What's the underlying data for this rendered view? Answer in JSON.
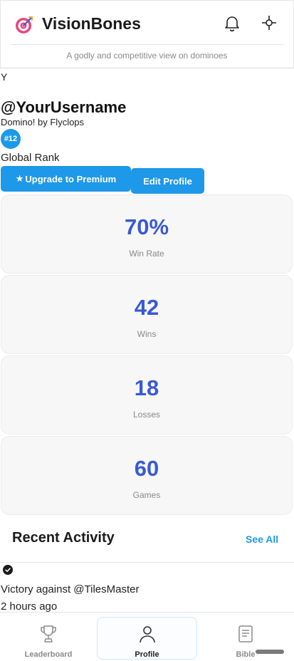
{
  "header": {
    "title": "VisionBones",
    "tagline": "A godly and competitive view on dominoes",
    "logo_icon": "target-dart-icon",
    "notifications_icon": "bell-icon",
    "action_icon": "crosshair-icon"
  },
  "profile": {
    "avatar_fallback": "Y",
    "username": "@YourUsername",
    "game": "Domino! by Flyclops",
    "rank_badge": "#12",
    "rank_label": "Global Rank",
    "upgrade_label": "Upgrade to Premium",
    "edit_label": "Edit Profile"
  },
  "stats": [
    {
      "value": "70%",
      "label": "Win Rate"
    },
    {
      "value": "42",
      "label": "Wins"
    },
    {
      "value": "18",
      "label": "Losses"
    },
    {
      "value": "60",
      "label": "Games"
    }
  ],
  "activity": {
    "title": "Recent Activity",
    "see_all": "See All",
    "items": [
      {
        "icon": "check-circle-icon",
        "description": "Victory against @TilesMaster",
        "time": "2 hours ago"
      }
    ]
  },
  "tabs": [
    {
      "label": "Leaderboard",
      "icon": "trophy-icon",
      "active": false
    },
    {
      "label": "Profile",
      "icon": "person-icon",
      "active": true
    },
    {
      "label": "Bible",
      "icon": "book-icon",
      "active": false
    }
  ],
  "colors": {
    "accent": "#1e98e8",
    "stat_value": "#3a59d6",
    "card_bg": "#f7f7f7"
  }
}
